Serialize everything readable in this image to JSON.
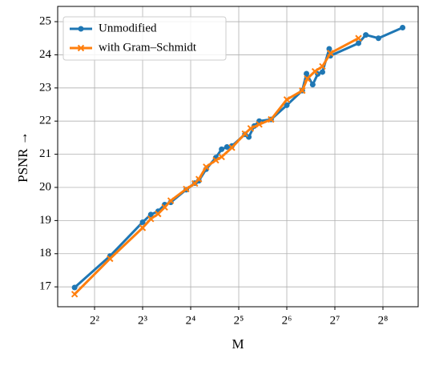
{
  "chart_data": {
    "type": "line",
    "xlabel": "M",
    "ylabel": "PSNR →",
    "xscale": "log2",
    "grid": true,
    "legend": "upper left",
    "xlim": [
      2.35,
      425.6
    ],
    "ylim": [
      16.4,
      25.46
    ],
    "xticks": [
      {
        "value": 4,
        "label": "2²"
      },
      {
        "value": 8,
        "label": "2³"
      },
      {
        "value": 16,
        "label": "2⁴"
      },
      {
        "value": 32,
        "label": "2⁵"
      },
      {
        "value": 64,
        "label": "2⁶"
      },
      {
        "value": 128,
        "label": "2⁷"
      },
      {
        "value": 256,
        "label": "2⁸"
      }
    ],
    "yticks": [
      17,
      18,
      19,
      20,
      21,
      22,
      23,
      24,
      25
    ],
    "series": [
      {
        "name": "Unmodified",
        "color": "#1f77b4",
        "marker": "circle",
        "x": [
          3,
          5,
          8,
          9,
          10,
          11,
          12,
          15,
          17,
          18,
          20,
          23,
          25,
          27,
          29,
          35,
          37,
          40,
          43,
          51,
          64,
          80,
          85,
          93,
          100,
          107,
          118,
          120,
          180,
          200,
          240,
          340
        ],
        "values": [
          16.98,
          17.93,
          18.95,
          19.18,
          19.28,
          19.48,
          19.55,
          19.93,
          20.13,
          20.2,
          20.55,
          20.9,
          21.15,
          21.22,
          21.25,
          21.6,
          21.52,
          21.85,
          22.0,
          22.05,
          22.48,
          22.92,
          23.43,
          23.1,
          23.42,
          23.48,
          24.18,
          23.97,
          24.35,
          24.6,
          24.5,
          24.82
        ]
      },
      {
        "name": "with Gram–Schmidt",
        "color": "#ff7f0e",
        "marker": "x",
        "x": [
          3,
          5,
          8,
          9,
          10,
          11,
          12,
          15,
          17,
          18,
          20,
          23,
          25,
          29,
          35,
          38,
          43,
          51,
          64,
          80,
          86,
          96,
          107,
          120,
          180
        ],
        "values": [
          16.78,
          17.85,
          18.78,
          19.05,
          19.2,
          19.4,
          19.6,
          19.95,
          20.12,
          20.25,
          20.62,
          20.82,
          20.92,
          21.2,
          21.62,
          21.78,
          21.9,
          22.05,
          22.65,
          22.92,
          23.28,
          23.5,
          23.65,
          24.05,
          24.5
        ]
      }
    ]
  }
}
